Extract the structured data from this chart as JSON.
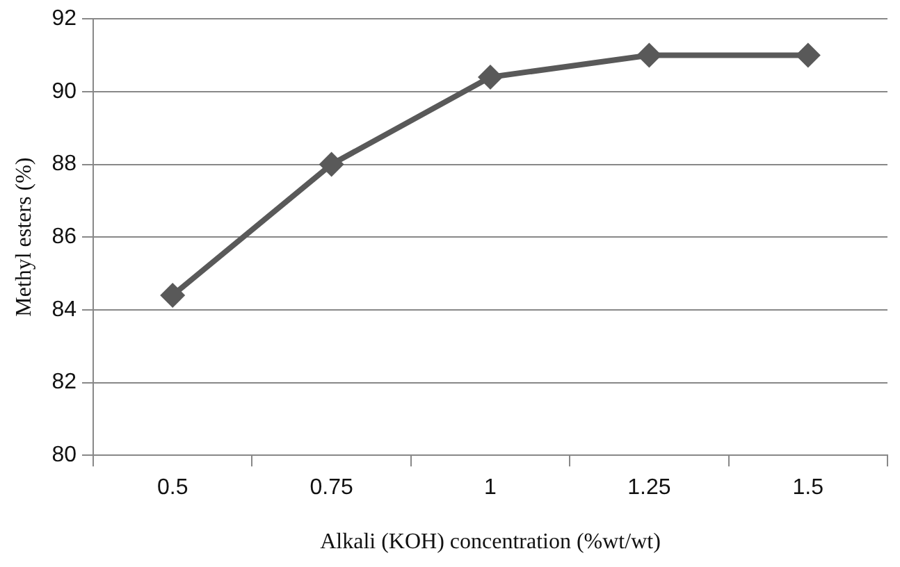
{
  "chart_data": {
    "type": "line",
    "xlabel": "Alkali (KOH) concentration (%wt/wt)",
    "ylabel": "Methyl esters (%)",
    "categories": [
      "0.5",
      "0.75",
      "1",
      "1.25",
      "1.5"
    ],
    "series": [
      {
        "color": "#595959",
        "values": [
          84.4,
          88.0,
          90.4,
          91.0,
          91.0
        ]
      }
    ],
    "ylim": [
      80,
      92
    ],
    "yticks": [
      80,
      82,
      84,
      86,
      88,
      90,
      92
    ],
    "grid": "y",
    "legend": false,
    "marker": "diamond",
    "line_style": "solid"
  }
}
